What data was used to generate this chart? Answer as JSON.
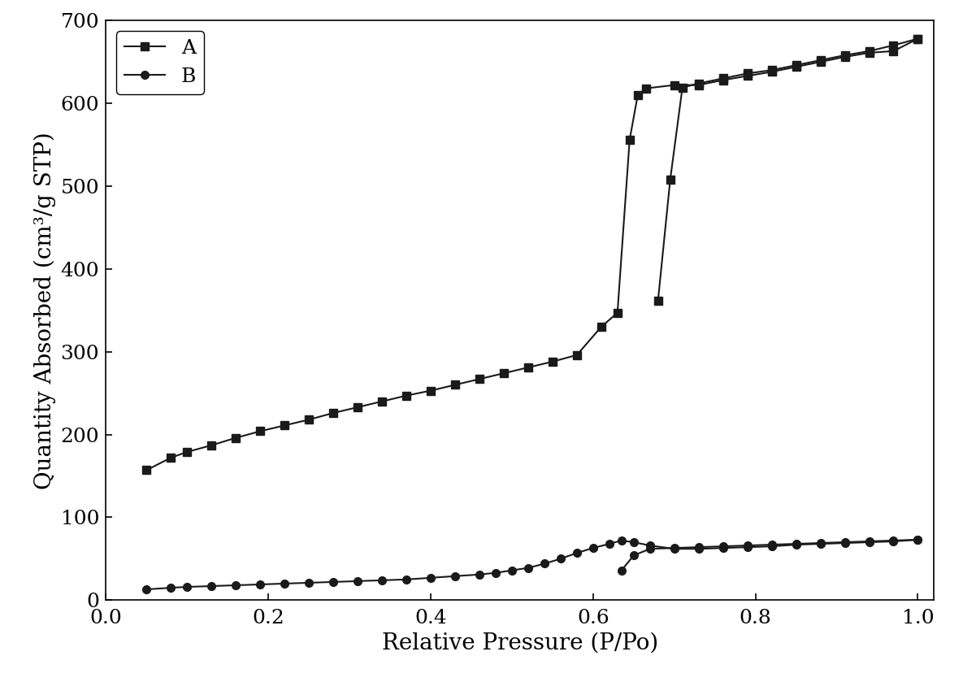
{
  "series_A_adsorption": {
    "x": [
      0.05,
      0.08,
      0.1,
      0.13,
      0.16,
      0.19,
      0.22,
      0.25,
      0.28,
      0.31,
      0.34,
      0.37,
      0.4,
      0.43,
      0.46,
      0.49,
      0.52,
      0.55,
      0.58,
      0.61,
      0.63,
      0.645,
      0.655,
      0.665,
      0.7,
      0.73,
      0.76,
      0.79,
      0.82,
      0.85,
      0.88,
      0.91,
      0.94,
      0.97,
      1.0
    ],
    "y": [
      157,
      172,
      179,
      187,
      196,
      204,
      211,
      218,
      226,
      233,
      240,
      247,
      253,
      260,
      267,
      274,
      281,
      288,
      296,
      330,
      347,
      556,
      610,
      618,
      622,
      622,
      628,
      633,
      638,
      644,
      650,
      656,
      661,
      663,
      678
    ]
  },
  "series_A_desorption": {
    "x": [
      1.0,
      0.97,
      0.94,
      0.91,
      0.88,
      0.85,
      0.82,
      0.79,
      0.76,
      0.73,
      0.71,
      0.695,
      0.68
    ],
    "y": [
      678,
      670,
      663,
      658,
      652,
      646,
      640,
      636,
      630,
      624,
      619,
      508,
      362
    ]
  },
  "series_B_adsorption": {
    "x": [
      0.05,
      0.08,
      0.1,
      0.13,
      0.16,
      0.19,
      0.22,
      0.25,
      0.28,
      0.31,
      0.34,
      0.37,
      0.4,
      0.43,
      0.46,
      0.48,
      0.5,
      0.52,
      0.54,
      0.56,
      0.58,
      0.6,
      0.62,
      0.635,
      0.65,
      0.67,
      0.7,
      0.73,
      0.76,
      0.79,
      0.82,
      0.85,
      0.88,
      0.91,
      0.94,
      0.97,
      1.0
    ],
    "y": [
      13,
      15,
      16,
      17,
      18,
      19,
      20,
      21,
      22,
      23,
      24,
      25,
      27,
      29,
      31,
      33,
      36,
      39,
      44,
      50,
      57,
      63,
      68,
      72,
      70,
      66,
      62,
      62,
      63,
      64,
      65,
      67,
      68,
      69,
      70,
      71,
      73
    ]
  },
  "series_B_desorption": {
    "x": [
      1.0,
      0.97,
      0.94,
      0.91,
      0.88,
      0.85,
      0.82,
      0.79,
      0.76,
      0.73,
      0.7,
      0.67,
      0.65,
      0.635
    ],
    "y": [
      73,
      72,
      71,
      70,
      69,
      68,
      67,
      66,
      65,
      64,
      63,
      62,
      54,
      36
    ]
  },
  "xlabel": "Relative Pressure (P/Po)",
  "ylabel": "Quantity Absorbed (cm³/g STP)",
  "xlim": [
    0.0,
    1.02
  ],
  "ylim": [
    0,
    700
  ],
  "xticks": [
    0.0,
    0.2,
    0.4,
    0.6,
    0.8,
    1.0
  ],
  "yticks": [
    0,
    100,
    200,
    300,
    400,
    500,
    600,
    700
  ],
  "legend_A": "A",
  "legend_B": "B",
  "line_color": "#1a1a1a",
  "marker_square": "s",
  "marker_circle": "o",
  "markersize": 7,
  "linewidth": 1.5,
  "fontsize_label": 20,
  "fontsize_tick": 18,
  "fontsize_legend": 18
}
